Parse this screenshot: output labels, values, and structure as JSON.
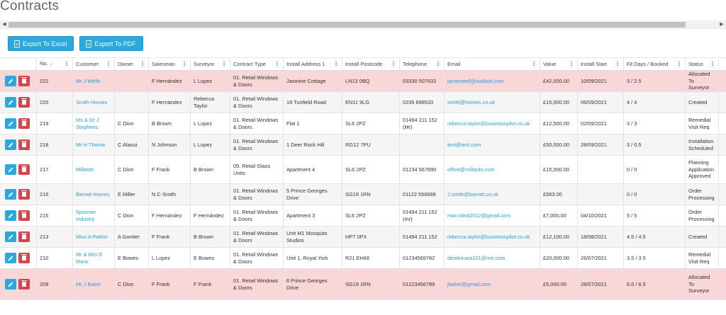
{
  "page": {
    "title": "Contracts"
  },
  "toolbar": {
    "export_excel": "Export To Excel",
    "export_pdf": "Export To PDF"
  },
  "columns": {
    "no": "No.",
    "customer": "Customer",
    "owner": "Owner",
    "salesman": "Salesman",
    "surveyor": "Surveyor",
    "contract_type": "Contract Type",
    "install_address": "Install Address 1",
    "install_postcode": "Install Postcode",
    "telephone": "Telephone",
    "email": "Email",
    "value": "Value",
    "install_start": "Install Start",
    "fit_days": "Fit Days / Booked",
    "status": "Status"
  },
  "colors": {
    "accent": "#2ba8de",
    "danger": "#d9434a",
    "highlight_row": "#f9d6d8"
  },
  "rows": [
    {
      "no": "222",
      "customer": "Mr J Wells",
      "owner": "",
      "salesman": "F Hernández",
      "surveyor": "L Lopez",
      "contract_type": "01. Retail Windows & Doors",
      "install_address": "Jasmine Cottage",
      "install_postcode": "LN13 0BQ",
      "telephone": "03330 507632",
      "email": "jameswell@outlook.com",
      "value": "£42,000.00",
      "install_start": "10/09/2021",
      "fit_days": "3 / 2.5",
      "status": "Allocated To Surveyor"
    },
    {
      "no": "220",
      "customer": "Smith Homes",
      "owner": "",
      "salesman": "F Hernández",
      "surveyor": "Rebecca Taylor",
      "contract_type": "01. Retail Windows & Doors",
      "install_address": "18 Tunfield Road",
      "install_postcode": "EN11 9LG",
      "telephone": "0235 698533",
      "email": "smith@homes.co.uk",
      "value": "£15,000.00",
      "install_start": "06/09/2021",
      "fit_days": "4 / 4",
      "status": "Created"
    },
    {
      "no": "219",
      "customer": "Ms & Dr J Stephens",
      "owner": "C Dion",
      "salesman": "B Brown",
      "surveyor": "L Lopez",
      "contract_type": "01. Retail Windows & Doors",
      "install_address": "Flat 1",
      "install_postcode": "SL6 2PZ",
      "telephone": "01494 211 152 (Mr)",
      "email": "rebecca.taylor@businesspilot.co.uk",
      "value": "£12,500.00",
      "install_start": "02/09/2021",
      "fit_days": "3 / 3",
      "status": "Remedial Visit Req"
    },
    {
      "no": "218",
      "customer": "Mr H Thorne",
      "owner": "C Alaoui",
      "salesman": "N Johnson",
      "surveyor": "L Lopez",
      "contract_type": "01. Retail Windows & Doors",
      "install_address": "1 Deer Rock Hill",
      "install_postcode": "RG12 7PU",
      "telephone": "",
      "email": "test@test.com",
      "value": "£50,000.00",
      "install_start": "28/09/2021",
      "fit_days": "3 / 0.5",
      "status": "Installation Scheduled"
    },
    {
      "no": "217",
      "customer": "Millards",
      "owner": "C Dion",
      "salesman": "F Frank",
      "surveyor": "B Brown",
      "contract_type": "05. Retail Glass Units",
      "install_address": "Apartment 4",
      "install_postcode": "SL6 2PZ",
      "telephone": "01234 567890",
      "email": "office@millards.com",
      "value": "£15,000.00",
      "install_start": "",
      "fit_days": "0 / 0",
      "status": "Planning Application Approved"
    },
    {
      "no": "216",
      "customer": "Barratt Homes",
      "owner": "E Miller",
      "salesman": "N C-Smith",
      "surveyor": "",
      "contract_type": "01. Retail Windows & Doors",
      "install_address": "5 Prince Georges Drive",
      "install_postcode": "SG19 1RN",
      "telephone": "01122 556688",
      "email": "J.smith@barratt.co.uk",
      "value": "£563.00",
      "install_start": "",
      "fit_days": "0 / 0",
      "status": "Order Processing"
    },
    {
      "no": "215",
      "customer": "Spooner Industry",
      "owner": "C Dion",
      "salesman": "F Hernández",
      "surveyor": "F Hernández",
      "contract_type": "01. Retail Windows & Doors",
      "install_address": "Apartment 3",
      "install_postcode": "SL6 2PZ",
      "telephone": "01494 211 152 (mr)",
      "email": "max.blind2012@gmail.com",
      "value": "£7,000.00",
      "install_start": "04/10/2021",
      "fit_days": "5 / 5",
      "status": "Order Processing"
    },
    {
      "no": "213",
      "customer": "Miss A Parker",
      "owner": "A Gontier",
      "salesman": "F Frank",
      "surveyor": "B Brown",
      "contract_type": "01. Retail Windows & Doors",
      "install_address": "Unit M1 Mosquito Studios",
      "install_postcode": "HP7 0PX",
      "telephone": "01494 211 152",
      "email": "rebecca.taylor@businesspilot.co.uk",
      "value": "£12,100.00",
      "install_start": "18/08/2021",
      "fit_days": "4.5 / 4.5",
      "status": "Created"
    },
    {
      "no": "210",
      "customer": "Mr & Mrs D Mara",
      "owner": "E Bowes",
      "salesman": "L Lopez",
      "surveyor": "E Bowes",
      "contract_type": "01. Retail Windows & Doors",
      "install_address": "Unit 1, Royal York",
      "install_postcode": "R21 EH66",
      "telephone": "01234569782",
      "email": "derekmara101@me.com",
      "value": "£20,000.00",
      "install_start": "26/07/2021",
      "fit_days": "3.5 / 3.5",
      "status": "Remedial Visit Req"
    },
    {
      "no": "209",
      "customer": "Mr J Baker",
      "owner": "C Dion",
      "salesman": "F Frank",
      "surveyor": "F Frank",
      "contract_type": "01. Retail Windows & Doors",
      "install_address": "6 Prince Georges Drive",
      "install_postcode": "SG19 1RN",
      "telephone": "01223456789",
      "email": "jbaker@gmail.com",
      "value": "£5,000.00",
      "install_start": "28/07/2021",
      "fit_days": "6.5 / 6.5",
      "status": "Allocated To Surveyor"
    }
  ]
}
